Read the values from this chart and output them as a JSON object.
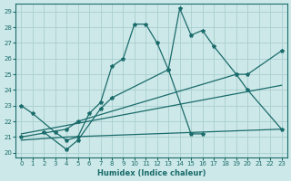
{
  "xlabel": "Humidex (Indice chaleur)",
  "xlim": [
    -0.5,
    23.5
  ],
  "ylim": [
    19.7,
    29.5
  ],
  "xticks": [
    0,
    1,
    2,
    3,
    4,
    5,
    6,
    7,
    8,
    9,
    10,
    11,
    12,
    13,
    14,
    15,
    16,
    17,
    18,
    19,
    20,
    21,
    22,
    23
  ],
  "yticks": [
    20,
    21,
    22,
    23,
    24,
    25,
    26,
    27,
    28,
    29
  ],
  "background_color": "#cde8e8",
  "grid_color": "#aacece",
  "line_color": "#1a6b6b",
  "line1_x": [
    0,
    1,
    3,
    4,
    5,
    6,
    7,
    8,
    9,
    10,
    11,
    12,
    13,
    14,
    15,
    16,
    17,
    19,
    20,
    23
  ],
  "line1_y": [
    23.0,
    22.5,
    21.3,
    20.8,
    21.0,
    22.5,
    23.2,
    25.5,
    26.0,
    28.2,
    28.2,
    27.0,
    25.3,
    29.2,
    27.5,
    27.8,
    26.8,
    25.0,
    24.0,
    21.5
  ],
  "line2_x": [
    2,
    4,
    5,
    7,
    8,
    13,
    15,
    16
  ],
  "line2_y": [
    21.3,
    20.2,
    20.8,
    22.8,
    23.5,
    25.3,
    21.2,
    21.2
  ],
  "line3_x": [
    0,
    4,
    5,
    19,
    20,
    23
  ],
  "line3_y": [
    21.0,
    21.5,
    22.0,
    25.0,
    25.0,
    26.5
  ],
  "line4_x": [
    0,
    4,
    23
  ],
  "line4_y": [
    20.8,
    21.0,
    21.5
  ],
  "line5_x": [
    0,
    23
  ],
  "line5_y": [
    21.2,
    24.3
  ]
}
